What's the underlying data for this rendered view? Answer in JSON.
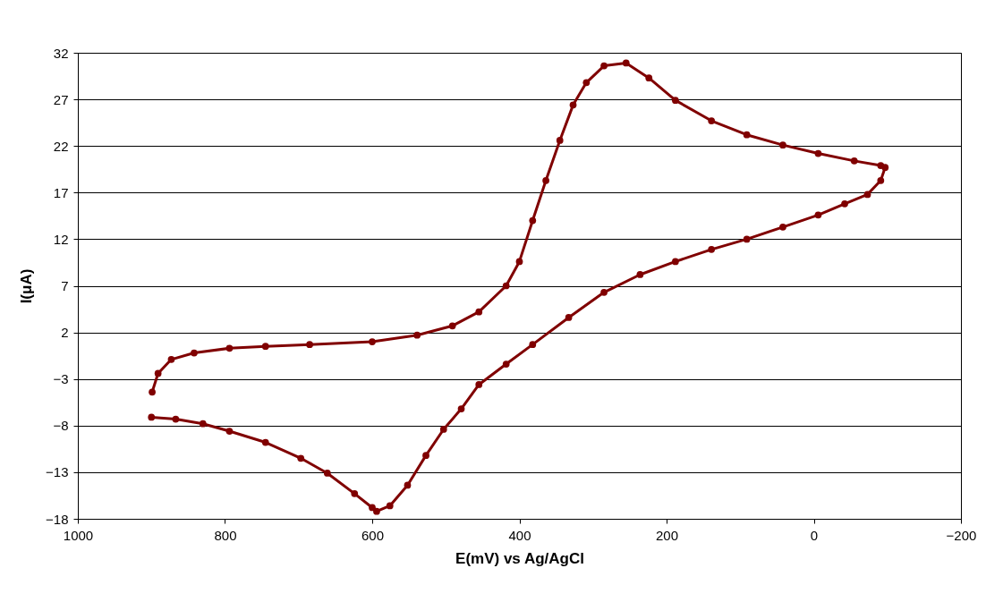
{
  "chart_data": {
    "type": "line",
    "xlabel": "E(mV) vs Ag/AgCl",
    "ylabel": "I(μA)",
    "xlim": [
      1000,
      -200
    ],
    "xticks": [
      1000,
      800,
      600,
      400,
      200,
      0,
      -200
    ],
    "ylim": [
      -18,
      32
    ],
    "yticks": [
      -18,
      -13,
      -8,
      -3,
      2,
      7,
      12,
      17,
      22,
      27,
      32
    ],
    "grid": "y",
    "marker": "circle",
    "line_style": "solid",
    "series": [
      {
        "color": "#800000",
        "x": [
          900,
          867,
          830,
          794,
          745,
          697,
          661,
          624,
          600,
          594,
          576,
          552,
          527,
          503,
          479,
          455,
          418,
          382,
          333,
          285,
          236,
          188,
          139,
          91,
          42,
          -6,
          -42,
          -73,
          -91,
          -97,
          -91,
          -55,
          -6,
          42,
          91,
          139,
          188,
          224,
          255,
          285,
          309,
          327,
          345,
          364,
          382,
          400,
          418,
          455,
          491,
          539,
          600,
          685,
          745,
          794,
          842,
          873,
          891,
          899
        ],
        "values": [
          -7.1,
          -7.3,
          -7.8,
          -8.6,
          -9.8,
          -11.5,
          -13.1,
          -15.3,
          -16.8,
          -17.2,
          -16.6,
          -14.4,
          -11.2,
          -8.4,
          -6.2,
          -3.6,
          -1.4,
          0.7,
          3.6,
          6.3,
          8.2,
          9.6,
          10.9,
          12.0,
          13.3,
          14.6,
          15.8,
          16.8,
          18.3,
          19.7,
          19.9,
          20.4,
          21.2,
          22.1,
          23.2,
          24.7,
          26.9,
          29.3,
          30.9,
          30.6,
          28.8,
          26.4,
          22.6,
          18.3,
          14.0,
          9.6,
          7.0,
          4.2,
          2.7,
          1.7,
          1.0,
          0.7,
          0.5,
          0.3,
          -0.2,
          -0.9,
          -2.4,
          -4.4
        ]
      }
    ]
  }
}
